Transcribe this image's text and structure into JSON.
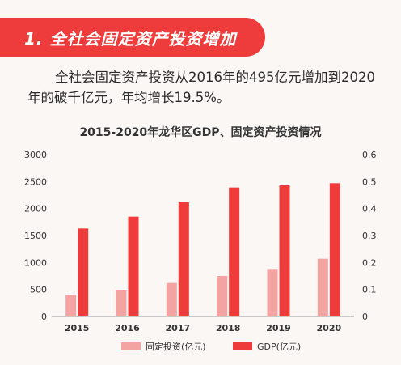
{
  "banner": {
    "text": "1. 全社会固定资产投资增加"
  },
  "paragraph": {
    "text": "全社会固定资产投资从2016年的495亿元增加到2020年的破千亿元，年均增长19.5%。"
  },
  "colors": {
    "accent": "#ee3c3c",
    "investment": "#f4a3a3",
    "gdp": "#ee3c3c"
  },
  "chart_data": {
    "type": "bar",
    "title": "2015-2020年龙华区GDP、固定资产投资情况",
    "categories": [
      "2015",
      "2016",
      "2017",
      "2018",
      "2019",
      "2020"
    ],
    "left_axis": {
      "min": 0,
      "max": 3000,
      "ticks": [
        "0",
        "500",
        "1000",
        "1500",
        "2000",
        "2500",
        "3000"
      ]
    },
    "right_axis": {
      "min": 0,
      "max": 0.6,
      "ticks": [
        "0",
        "0.1",
        "0.2",
        "0.3",
        "0.4",
        "0.5",
        "0.6"
      ]
    },
    "series": [
      {
        "name": "固定投资(亿元)",
        "axis": "left",
        "values": [
          400,
          495,
          620,
          750,
          880,
          1070
        ]
      },
      {
        "name": "GDP(亿元)",
        "axis": "left",
        "values": [
          1630,
          1850,
          2120,
          2390,
          2430,
          2470
        ]
      }
    ],
    "grid": false,
    "legend_position": "bottom"
  }
}
